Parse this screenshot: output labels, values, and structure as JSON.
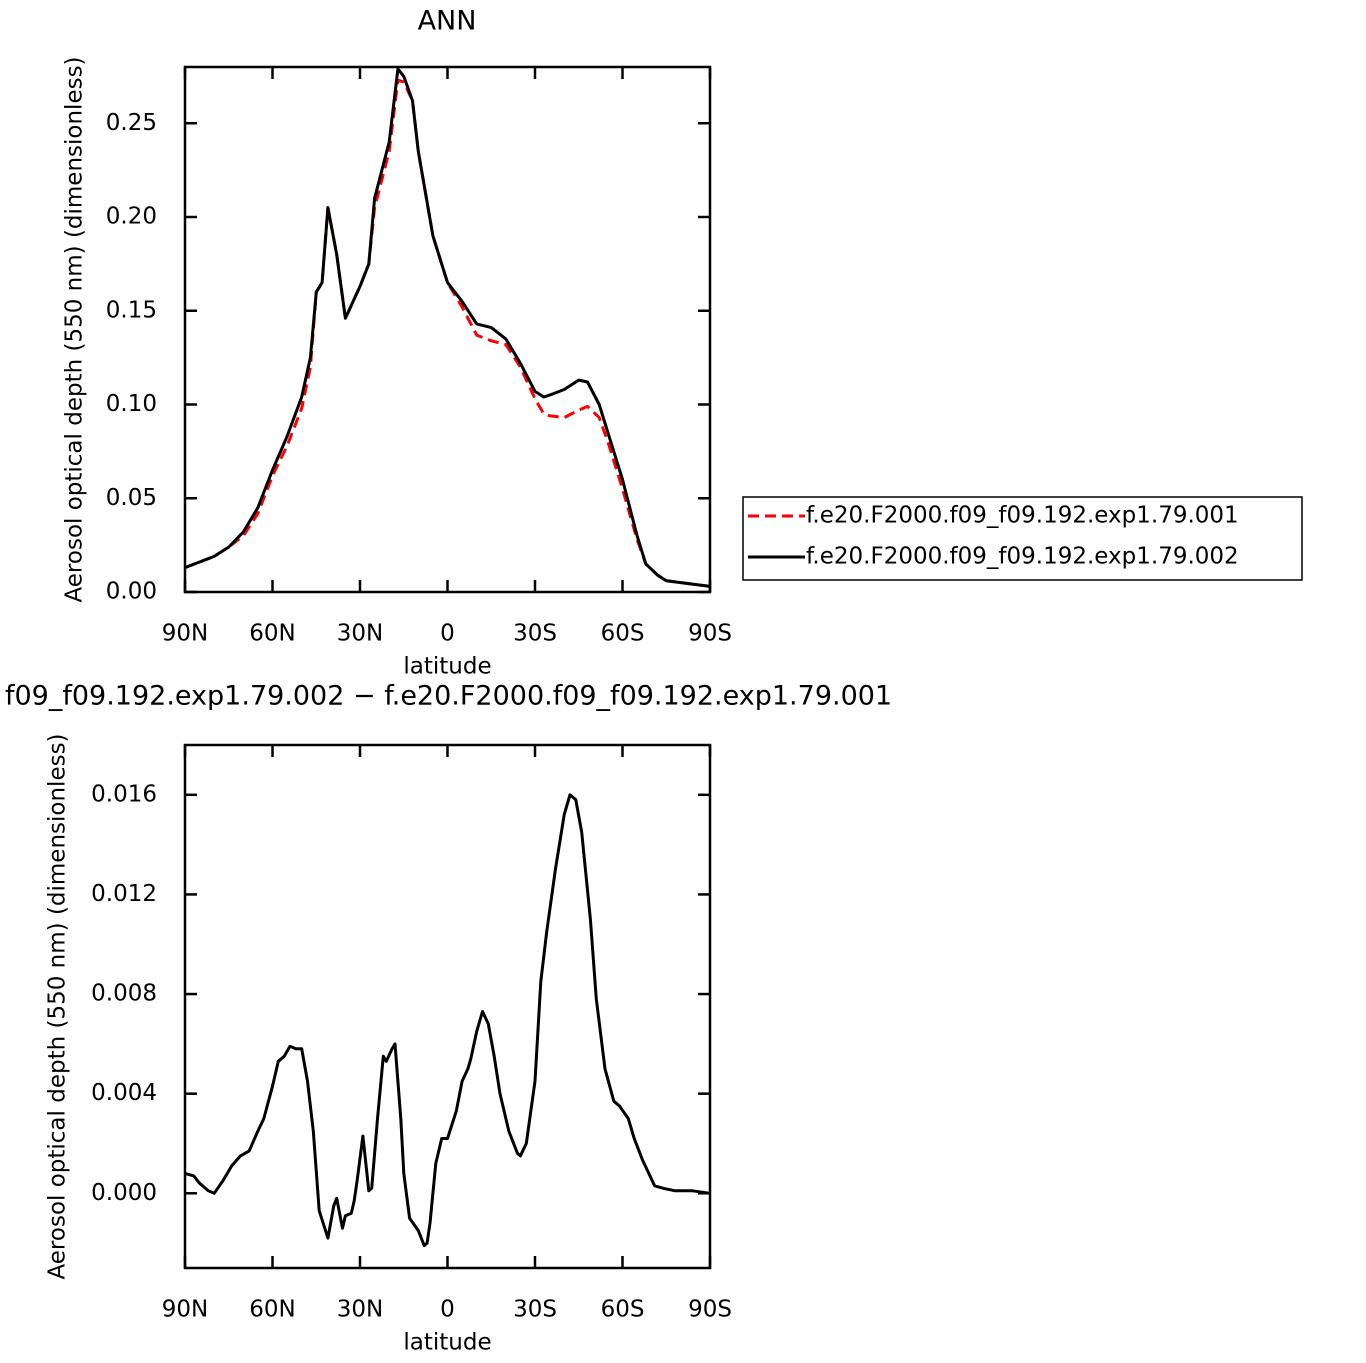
{
  "chart_data": [
    {
      "type": "line",
      "title": "ANN",
      "xlabel": "latitude",
      "ylabel": "Aerosol optical depth (550 nm) (dimensionless)",
      "x": [
        90,
        85,
        80,
        75,
        70,
        65,
        60,
        55,
        50,
        47,
        45,
        43,
        41,
        38,
        35,
        30,
        27,
        25,
        20,
        17,
        15,
        12,
        10,
        5,
        0,
        -5,
        -10,
        -15,
        -20,
        -25,
        -30,
        -33,
        -35,
        -40,
        -45,
        -48,
        -52,
        -55,
        -60,
        -65,
        -68,
        -72,
        -75,
        -80,
        -85,
        -90
      ],
      "series": [
        {
          "name": "f.e20.F2000.f09_f09.192.exp1.79.001",
          "color": "#ff0000",
          "line_style": "dashed",
          "values": [
            0.013,
            0.016,
            0.019,
            0.024,
            0.03,
            0.042,
            0.062,
            0.078,
            0.098,
            0.12,
            0.16,
            0.165,
            0.205,
            0.18,
            0.146,
            0.163,
            0.175,
            0.205,
            0.235,
            0.273,
            0.272,
            0.262,
            0.235,
            0.19,
            0.165,
            0.152,
            0.137,
            0.134,
            0.132,
            0.12,
            0.103,
            0.095,
            0.094,
            0.093,
            0.097,
            0.099,
            0.093,
            0.08,
            0.055,
            0.028,
            0.015,
            0.009,
            0.006,
            0.005,
            0.004,
            0.003
          ]
        },
        {
          "name": "f.e20.F2000.f09_f09.192.exp1.79.002",
          "color": "#000000",
          "line_style": "solid",
          "values": [
            0.013,
            0.016,
            0.019,
            0.024,
            0.032,
            0.045,
            0.065,
            0.083,
            0.104,
            0.125,
            0.16,
            0.165,
            0.205,
            0.18,
            0.146,
            0.163,
            0.175,
            0.21,
            0.24,
            0.279,
            0.275,
            0.262,
            0.235,
            0.19,
            0.165,
            0.155,
            0.143,
            0.141,
            0.135,
            0.122,
            0.107,
            0.104,
            0.105,
            0.108,
            0.113,
            0.112,
            0.1,
            0.085,
            0.06,
            0.03,
            0.015,
            0.009,
            0.006,
            0.005,
            0.004,
            0.003
          ]
        }
      ],
      "xlim": [
        90,
        -90
      ],
      "xticks": [
        {
          "value": 90,
          "label": "90N"
        },
        {
          "value": 60,
          "label": "60N"
        },
        {
          "value": 30,
          "label": "30N"
        },
        0,
        {
          "value": -30,
          "label": "30S"
        },
        {
          "value": -60,
          "label": "60S"
        },
        {
          "value": -90,
          "label": "90S"
        }
      ],
      "ylim": [
        0,
        0.28
      ],
      "yticks": [
        {
          "value": 0,
          "label": "0.00"
        },
        {
          "value": 0.05,
          "label": "0.05"
        },
        {
          "value": 0.1,
          "label": "0.10"
        },
        {
          "value": 0.15,
          "label": "0.15"
        },
        {
          "value": 0.2,
          "label": "0.20"
        },
        {
          "value": 0.25,
          "label": "0.25"
        }
      ],
      "legend": "outside right"
    },
    {
      "type": "line",
      "title": "f09_f09.192.exp1.79.002 − f.e20.F2000.f09_f09.192.exp1.79.001",
      "xlabel": "latitude",
      "ylabel": "Aerosol optical depth (550 nm) (dimensionless)",
      "x": [
        90,
        87,
        85,
        82,
        80,
        77,
        74,
        71,
        68,
        65,
        63,
        60,
        58,
        56,
        54,
        52,
        50,
        48,
        46,
        44,
        41,
        39,
        38,
        36,
        35,
        33,
        32,
        31,
        29,
        27,
        26,
        24,
        22,
        21,
        19,
        18,
        16,
        15,
        13,
        10,
        8,
        7,
        6,
        4,
        2,
        0,
        -3,
        -5,
        -7,
        -8,
        -10,
        -12,
        -14,
        -16,
        -18,
        -21,
        -24,
        -25,
        -27,
        -30,
        -32,
        -34,
        -37,
        -40,
        -42,
        -44,
        -46,
        -49,
        -51,
        -54,
        -57,
        -59,
        -62,
        -64,
        -67,
        -69,
        -71,
        -74,
        -78,
        -84,
        -90
      ],
      "values": [
        0.0008,
        0.0007,
        0.0004,
        0.0001,
        0.0,
        0.0005,
        0.0011,
        0.0015,
        0.0017,
        0.0025,
        0.003,
        0.0043,
        0.0053,
        0.0055,
        0.0059,
        0.0058,
        0.0058,
        0.0045,
        0.0025,
        -0.0007,
        -0.0018,
        -0.0005,
        -0.0002,
        -0.0014,
        -0.0009,
        -0.0008,
        -0.0003,
        0.0005,
        0.0023,
        0.0001,
        0.0002,
        0.003,
        0.0055,
        0.0053,
        0.0058,
        0.006,
        0.003,
        0.0008,
        -0.001,
        -0.0015,
        -0.0021,
        -0.002,
        -0.0012,
        0.0012,
        0.0022,
        0.0022,
        0.0033,
        0.0045,
        0.005,
        0.0054,
        0.0065,
        0.0073,
        0.0068,
        0.0055,
        0.004,
        0.0025,
        0.0016,
        0.0015,
        0.002,
        0.0045,
        0.0085,
        0.0105,
        0.013,
        0.0152,
        0.016,
        0.0158,
        0.0145,
        0.011,
        0.0078,
        0.005,
        0.0037,
        0.0035,
        0.003,
        0.0022,
        0.0013,
        0.0008,
        0.0003,
        0.0002,
        0.0001,
        0.0001,
        0.0
      ],
      "color": "#000000",
      "line_style": "solid",
      "xlim": [
        90,
        -90
      ],
      "xticks": [
        {
          "value": 90,
          "label": "90N"
        },
        {
          "value": 60,
          "label": "60N"
        },
        {
          "value": 30,
          "label": "30N"
        },
        0,
        {
          "value": -30,
          "label": "30S"
        },
        {
          "value": -60,
          "label": "60S"
        },
        {
          "value": -90,
          "label": "90S"
        }
      ],
      "ylim": [
        -0.003,
        0.018
      ],
      "yticks": [
        {
          "value": 0,
          "label": "0.000"
        },
        {
          "value": 0.004,
          "label": "0.004"
        },
        {
          "value": 0.008,
          "label": "0.008"
        },
        {
          "value": 0.012,
          "label": "0.012"
        },
        {
          "value": 0.016,
          "label": "0.016"
        }
      ]
    }
  ]
}
